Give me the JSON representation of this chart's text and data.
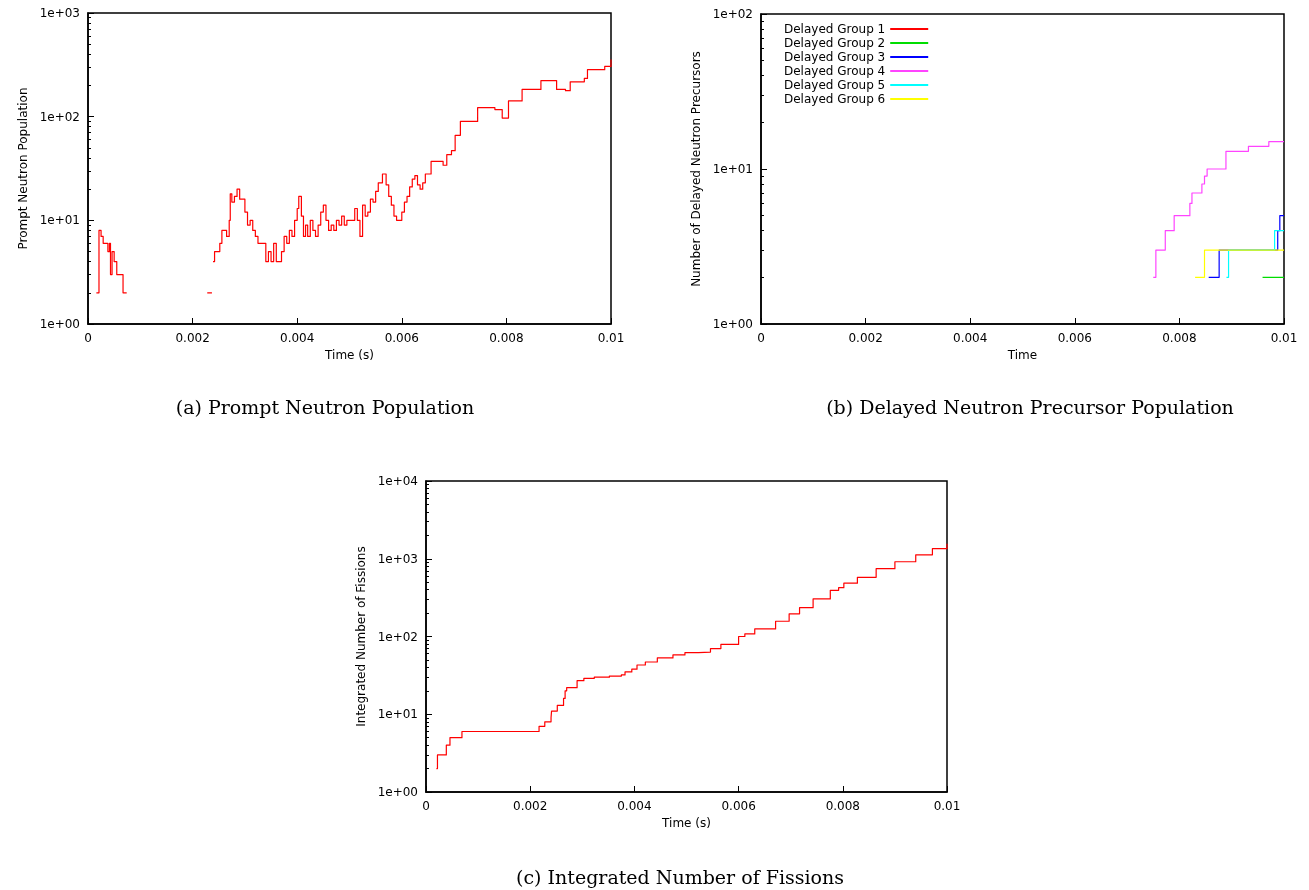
{
  "chart_data": [
    {
      "type": "step",
      "title": "(a) Prompt Neutron Population",
      "xlabel": "Time (s)",
      "ylabel": "Prompt Neutron Population",
      "log": "y",
      "grid": false,
      "marker": "none",
      "line_style": "solid",
      "xlim": [
        0,
        0.01
      ],
      "xticks": [
        0,
        0.002,
        0.004,
        0.006,
        0.008,
        0.01
      ],
      "ylim": [
        1,
        1000
      ],
      "yticks": [
        {
          "value": 1,
          "label": "1e+00"
        },
        {
          "value": 10,
          "label": "1e+01"
        },
        {
          "value": 100,
          "label": "1e+02"
        },
        {
          "value": 1000,
          "label": "1e+03"
        }
      ],
      "series": [
        {
          "color": "#ff0000",
          "x": [
            0.00016,
            0.00021,
            0.00025,
            0.00029,
            0.00038,
            0.00041,
            0.00043,
            0.00046,
            0.0005,
            0.00055,
            0.00067,
            0.00074,
            0.00228,
            0.00237,
            0.00239,
            0.00242,
            0.00252,
            0.00256,
            0.00265,
            0.0027,
            0.00272,
            0.00275,
            0.0028,
            0.00285,
            0.0029,
            0.003,
            0.00305,
            0.0031,
            0.00315,
            0.0032,
            0.00325,
            0.0034,
            0.00345,
            0.0035,
            0.00355,
            0.0036,
            0.0037,
            0.00375,
            0.0038,
            0.00385,
            0.0039,
            0.00395,
            0.004,
            0.00403,
            0.00408,
            0.00412,
            0.00416,
            0.0042,
            0.00425,
            0.0043,
            0.00435,
            0.0044,
            0.00445,
            0.0045,
            0.00455,
            0.0046,
            0.00465,
            0.0047,
            0.00475,
            0.0048,
            0.00485,
            0.0049,
            0.00495,
            0.0051,
            0.00515,
            0.0052,
            0.00525,
            0.0053,
            0.00535,
            0.0054,
            0.00545,
            0.0055,
            0.00555,
            0.00563,
            0.0057,
            0.00575,
            0.0058,
            0.00585,
            0.0059,
            0.006,
            0.00605,
            0.0061,
            0.00615,
            0.0062,
            0.00625,
            0.0063,
            0.00635,
            0.0064,
            0.00645,
            0.00656,
            0.00679,
            0.00686,
            0.00695,
            0.00702,
            0.00712,
            0.00745,
            0.00778,
            0.00792,
            0.00804,
            0.0083,
            0.00866,
            0.00896,
            0.00913,
            0.00922,
            0.00949,
            0.00955,
            0.00988,
            0.01
          ],
          "values": [
            2,
            8,
            7,
            6,
            5,
            6,
            3,
            5,
            4,
            3,
            2,
            null,
            2,
            null,
            4,
            5,
            6,
            8,
            7,
            10,
            18,
            15,
            17,
            20,
            16,
            12,
            9,
            10,
            8,
            7,
            6,
            4,
            5,
            4,
            6,
            4,
            5,
            7,
            6,
            8,
            7,
            10,
            13,
            17,
            11,
            7,
            9,
            7,
            10,
            8,
            7,
            9,
            12,
            14,
            10,
            8,
            9,
            8,
            10,
            9,
            11,
            9,
            10,
            13,
            10,
            7,
            14,
            11,
            12,
            16,
            15,
            19,
            23,
            28,
            22,
            17,
            14,
            11,
            10,
            12,
            15,
            17,
            21,
            25,
            27,
            22,
            20,
            23,
            28,
            37,
            34,
            43,
            47,
            66,
            90,
            122,
            117,
            97,
            142,
            183,
            223,
            183,
            178,
            217,
            234,
            284,
            305,
            356
          ]
        }
      ]
    },
    {
      "type": "step",
      "title": "(b) Delayed Neutron Precursor Population",
      "xlabel": "Time",
      "ylabel": "Number of Delayed Neutron Precursors",
      "log": "y",
      "grid": false,
      "marker": "none",
      "line_style": "solid",
      "legend": "top left",
      "xlim": [
        0,
        0.01
      ],
      "xticks": [
        0,
        0.002,
        0.004,
        0.006,
        0.008,
        0.01
      ],
      "ylim": [
        1,
        100
      ],
      "yticks": [
        {
          "value": 1,
          "label": "1e+00"
        },
        {
          "value": 10,
          "label": "1e+01"
        },
        {
          "value": 100,
          "label": "1e+02"
        }
      ],
      "series": [
        {
          "name": "Delayed Group 1",
          "color": "#ff0000"
        },
        {
          "name": "Delayed Group 2",
          "color": "#00dd00",
          "x": [
            0.00959,
            0.01
          ],
          "values": [
            2,
            2
          ]
        },
        {
          "name": "Delayed Group 3",
          "color": "#0000ff",
          "x": [
            0.00856,
            0.00876,
            0.00988,
            0.00992,
            0.01
          ],
          "values": [
            2,
            3,
            4,
            5,
            5
          ]
        },
        {
          "name": "Delayed Group 4",
          "color": "#ff44ff",
          "x": [
            0.0075,
            0.00755,
            0.00773,
            0.0079,
            0.0082,
            0.00824,
            0.00843,
            0.00848,
            0.00853,
            0.00889,
            0.00932,
            0.00971,
            0.01
          ],
          "values": [
            2,
            3,
            4,
            5,
            6,
            7,
            8,
            9,
            10,
            13,
            14,
            15,
            15
          ]
        },
        {
          "name": "Delayed Group 5",
          "color": "#00ffff",
          "x": [
            0.0089,
            0.00894,
            0.00982,
            0.01
          ],
          "values": [
            2,
            3,
            4,
            4
          ]
        },
        {
          "name": "Delayed Group 6",
          "color": "#ffff00",
          "x": [
            0.0083,
            0.00848,
            0.01
          ],
          "values": [
            2,
            3,
            3
          ]
        }
      ]
    },
    {
      "type": "step",
      "title": "(c) Integrated Number of Fissions",
      "xlabel": "Time (s)",
      "ylabel": "Integrated Number of Fissions",
      "log": "y",
      "grid": false,
      "marker": "none",
      "line_style": "solid",
      "xlim": [
        0,
        0.01
      ],
      "xticks": [
        0,
        0.002,
        0.004,
        0.006,
        0.008,
        0.01
      ],
      "ylim": [
        1,
        10000
      ],
      "yticks": [
        {
          "value": 1,
          "label": "1e+00"
        },
        {
          "value": 10,
          "label": "1e+01"
        },
        {
          "value": 100,
          "label": "1e+02"
        },
        {
          "value": 1000,
          "label": "1e+03"
        },
        {
          "value": 10000,
          "label": "1e+04"
        }
      ],
      "series": [
        {
          "color": "#ff0000",
          "x": [
            0.0002,
            0.00022,
            0.00039,
            0.00046,
            0.00069,
            0.00217,
            0.00228,
            0.0024,
            0.00241,
            0.00252,
            0.00264,
            0.00267,
            0.0027,
            0.0029,
            0.00303,
            0.00323,
            0.00352,
            0.00375,
            0.00382,
            0.00395,
            0.00405,
            0.00421,
            0.00444,
            0.00474,
            0.00497,
            0.00523,
            0.00546,
            0.00566,
            0.006,
            0.00612,
            0.00631,
            0.00671,
            0.00697,
            0.00717,
            0.00743,
            0.00776,
            0.00792,
            0.00802,
            0.00828,
            0.00864,
            0.009,
            0.0094,
            0.00972,
            0.01
          ],
          "values": [
            2,
            3,
            4,
            5,
            6,
            7,
            8,
            9,
            11,
            13,
            16,
            20,
            22,
            27,
            29,
            30,
            31,
            32,
            35,
            38,
            43,
            47,
            53,
            58,
            62,
            63,
            70,
            79,
            100,
            108,
            125,
            157,
            196,
            235,
            304,
            393,
            424,
            485,
            577,
            745,
            915,
            1124,
            1351,
            1560
          ]
        }
      ]
    }
  ]
}
